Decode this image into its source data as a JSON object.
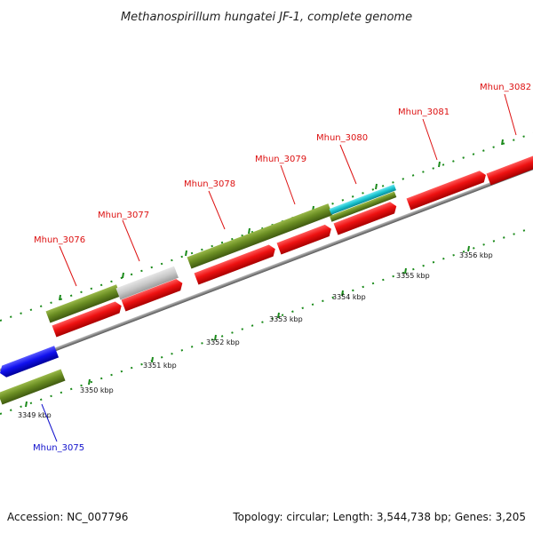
{
  "title": "Methanospirillum hungatei JF-1, complete genome",
  "footer": {
    "accession": "Accession: NC_007796",
    "summary": "Topology: circular; Length: 3,544,738 bp; Genes: 3,205"
  },
  "colors": {
    "forward_gene": "#ee1111",
    "reverse_gene": "#1111ee",
    "orf_green": "#6b8e23",
    "orf_grey": "#c8c8c8",
    "orf_cyan": "#19c3cf",
    "backbone": "#888888",
    "tick": "#1a8a1a",
    "label_red": "#dd1111",
    "label_blue": "#1111cc"
  },
  "scale": {
    "unit": "kbp",
    "labels": [
      "3349 kbp",
      "3350 kbp",
      "3351 kbp",
      "3352 kbp",
      "3353 kbp",
      "3354 kbp",
      "3355 kbp",
      "3356 kbp"
    ]
  },
  "genes": [
    {
      "id": "Mhun_3075",
      "strand": "reverse"
    },
    {
      "id": "Mhun_3076",
      "strand": "forward"
    },
    {
      "id": "Mhun_3077",
      "strand": "forward"
    },
    {
      "id": "Mhun_3078",
      "strand": "forward"
    },
    {
      "id": "Mhun_3079",
      "strand": "forward"
    },
    {
      "id": "Mhun_3080",
      "strand": "forward"
    },
    {
      "id": "Mhun_3081",
      "strand": "forward"
    },
    {
      "id": "Mhun_3082",
      "strand": "forward"
    }
  ]
}
